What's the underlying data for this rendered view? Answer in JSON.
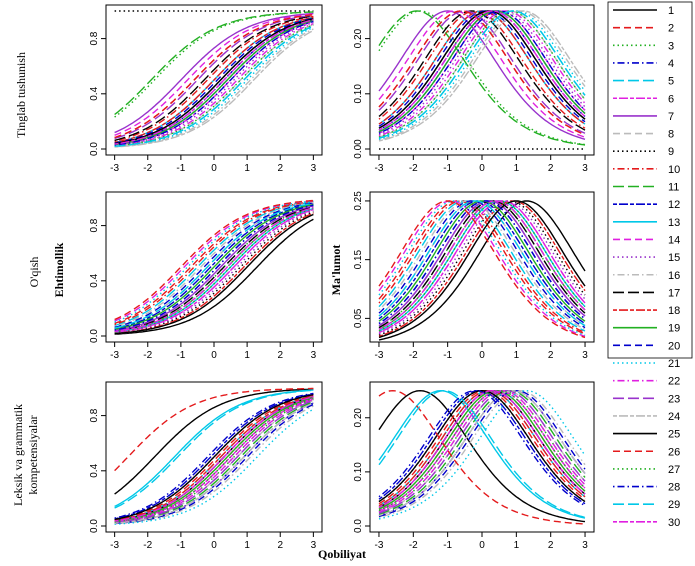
{
  "figure": {
    "ylabel_left": "Ehtimollik",
    "ylabel_right": "Ma'lumot",
    "xlabel": "Qobiliyat"
  },
  "row_labels": [
    [
      "Tinglab tushunish"
    ],
    [
      "O'qish"
    ],
    [
      "Leksik va grammatik",
      "kompetensiyalar"
    ]
  ],
  "legend": [
    {
      "label": "1",
      "color": "#000000",
      "dash": "solid"
    },
    {
      "label": "2",
      "color": "#e41a1c",
      "dash": "dash"
    },
    {
      "label": "3",
      "color": "#22b022",
      "dash": "dot"
    },
    {
      "label": "4",
      "color": "#0000cc",
      "dash": "dashdot"
    },
    {
      "label": "5",
      "color": "#00c8e8",
      "dash": "longdash"
    },
    {
      "label": "6",
      "color": "#e020e0",
      "dash": "twodash"
    },
    {
      "label": "7",
      "color": "#9933cc",
      "dash": "solid"
    },
    {
      "label": "8",
      "color": "#bbbbbb",
      "dash": "dash"
    },
    {
      "label": "9",
      "color": "#000000",
      "dash": "dot"
    },
    {
      "label": "10",
      "color": "#e41a1c",
      "dash": "dashdot"
    },
    {
      "label": "11",
      "color": "#22b022",
      "dash": "longdash"
    },
    {
      "label": "12",
      "color": "#0000cc",
      "dash": "twodash"
    },
    {
      "label": "13",
      "color": "#00c8e8",
      "dash": "solid"
    },
    {
      "label": "14",
      "color": "#e020e0",
      "dash": "dash"
    },
    {
      "label": "15",
      "color": "#9933cc",
      "dash": "dot"
    },
    {
      "label": "16",
      "color": "#bbbbbb",
      "dash": "dashdot"
    },
    {
      "label": "17",
      "color": "#000000",
      "dash": "longdash"
    },
    {
      "label": "18",
      "color": "#e41a1c",
      "dash": "twodash"
    },
    {
      "label": "19",
      "color": "#22b022",
      "dash": "solid"
    },
    {
      "label": "20",
      "color": "#0000cc",
      "dash": "dash"
    },
    {
      "label": "21",
      "color": "#00c8e8",
      "dash": "dot"
    },
    {
      "label": "22",
      "color": "#e020e0",
      "dash": "dashdot"
    },
    {
      "label": "23",
      "color": "#9933cc",
      "dash": "longdash"
    },
    {
      "label": "24",
      "color": "#bbbbbb",
      "dash": "twodash"
    },
    {
      "label": "25",
      "color": "#000000",
      "dash": "solid"
    },
    {
      "label": "26",
      "color": "#e41a1c",
      "dash": "dash"
    },
    {
      "label": "27",
      "color": "#22b022",
      "dash": "dot"
    },
    {
      "label": "28",
      "color": "#0000cc",
      "dash": "dashdot"
    },
    {
      "label": "29",
      "color": "#00c8e8",
      "dash": "longdash"
    },
    {
      "label": "30",
      "color": "#e020e0",
      "dash": "twodash"
    }
  ],
  "chart_data": [
    {
      "type": "line",
      "row": 0,
      "kind": "probability",
      "xlim": [
        -3,
        3
      ],
      "ylim": [
        0,
        1
      ],
      "xticks": [
        "-3",
        "-2",
        "-1",
        "0",
        "1",
        "2",
        "3"
      ],
      "yticks": [
        "0.0",
        "0.4",
        "0.8"
      ],
      "item_difficulty": [
        0.2,
        -0.6,
        -1.8,
        0.3,
        0.9,
        0.5,
        -1.0,
        0.8,
        -30,
        -0.2,
        -1.9,
        0.4,
        0.0,
        -0.8,
        0.6,
        1.1,
        -0.3,
        0.0,
        0.4,
        0.1,
        1.0,
        0.7,
        -0.5,
        1.2,
        0.2,
        -0.6,
        0.8,
        0.5,
        0.9,
        0.3
      ]
    },
    {
      "type": "line",
      "row": 0,
      "kind": "information",
      "xlim": [
        -3,
        3
      ],
      "ylim": [
        0,
        0.25
      ],
      "xticks": [
        "-3",
        "-2",
        "-1",
        "0",
        "1",
        "2",
        "3"
      ],
      "yticks": [
        "0.00",
        "0.10",
        "0.20"
      ],
      "item_difficulty": [
        0.2,
        -0.6,
        -1.8,
        0.3,
        0.9,
        0.5,
        -1.0,
        0.8,
        -30,
        -0.2,
        -1.9,
        0.4,
        0.0,
        -0.8,
        0.6,
        1.1,
        -0.3,
        0.0,
        0.4,
        0.1,
        1.0,
        0.7,
        -0.5,
        1.2,
        0.2,
        -0.6,
        0.8,
        0.5,
        0.9,
        0.3
      ]
    },
    {
      "type": "line",
      "row": 1,
      "kind": "probability",
      "xlim": [
        -3,
        3
      ],
      "ylim": [
        0,
        1
      ],
      "xticks": [
        "-3",
        "-2",
        "-1",
        "0",
        "1",
        "2",
        "3"
      ],
      "yticks": [
        "0.0",
        "0.4",
        "0.8"
      ],
      "item_difficulty": [
        1.3,
        -0.7,
        0.3,
        0.1,
        -0.5,
        0.6,
        0.2,
        -0.2,
        0.8,
        -0.6,
        0.4,
        -0.1,
        0.5,
        -0.9,
        0.7,
        -0.4,
        0.3,
        0.9,
        0.0,
        -0.3,
        -0.8,
        0.6,
        0.2,
        1.0,
        1.0,
        -1.0,
        0.5,
        0.1,
        -0.2,
        0.4
      ]
    },
    {
      "type": "line",
      "row": 1,
      "kind": "information",
      "xlim": [
        -3,
        3
      ],
      "ylim": [
        0,
        0.25
      ],
      "xticks": [
        "-3",
        "-2",
        "-1",
        "0",
        "1",
        "2",
        "3"
      ],
      "yticks": [
        "0.05",
        "0.15",
        "0.25"
      ],
      "item_difficulty": [
        1.3,
        -0.7,
        0.3,
        0.1,
        -0.5,
        0.6,
        0.2,
        -0.2,
        0.8,
        -0.6,
        0.4,
        -0.1,
        0.5,
        -0.9,
        0.7,
        -0.4,
        0.3,
        0.9,
        0.0,
        -0.3,
        -0.8,
        0.6,
        0.2,
        1.0,
        1.0,
        -1.0,
        0.5,
        0.1,
        -0.2,
        0.4
      ]
    },
    {
      "type": "line",
      "row": 2,
      "kind": "probability",
      "xlim": [
        -3,
        3
      ],
      "ylim": [
        0,
        1
      ],
      "xticks": [
        "-3",
        "-2",
        "-1",
        "0",
        "1",
        "2",
        "3"
      ],
      "yticks": [
        "0.0",
        "0.4",
        "0.8"
      ],
      "item_difficulty": [
        -1.8,
        0.1,
        0.6,
        0.9,
        0.2,
        0.5,
        0.3,
        0.7,
        0.0,
        0.4,
        0.8,
        -0.1,
        -1.2,
        0.6,
        0.9,
        1.1,
        0.3,
        0.2,
        0.4,
        1.0,
        1.3,
        0.5,
        0.7,
        0.9,
        0.0,
        -2.6,
        0.5,
        -0.2,
        -1.1,
        0.3
      ]
    },
    {
      "type": "line",
      "row": 2,
      "kind": "information",
      "xlim": [
        -3,
        3
      ],
      "ylim": [
        0,
        0.25
      ],
      "xticks": [
        "-3",
        "-2",
        "-1",
        "0",
        "1",
        "2",
        "3"
      ],
      "yticks": [
        "0.0",
        "0.10",
        "0.20"
      ],
      "item_difficulty": [
        -1.8,
        0.1,
        0.6,
        0.9,
        0.2,
        0.5,
        0.3,
        0.7,
        0.0,
        0.4,
        0.8,
        -0.1,
        -1.2,
        0.6,
        0.9,
        1.1,
        0.3,
        0.2,
        0.4,
        1.0,
        1.3,
        0.5,
        0.7,
        0.9,
        0.0,
        -2.6,
        0.5,
        -0.2,
        -1.1,
        0.3
      ]
    }
  ]
}
